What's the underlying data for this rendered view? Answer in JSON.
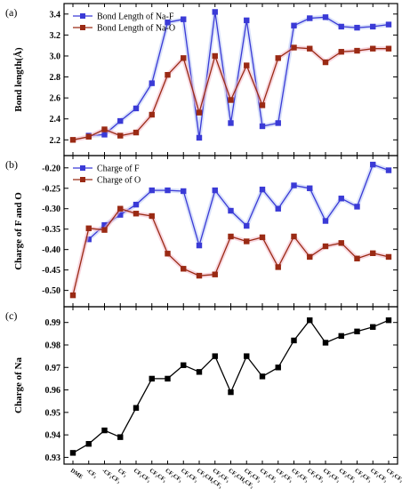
{
  "chart_data": [
    {
      "type": "line",
      "panel_label": "(a)",
      "title": "",
      "xlabel": "",
      "ylabel": "Bond length(Å)",
      "ylim": [
        2.05,
        3.5
      ],
      "yticks": [
        2.2,
        2.4,
        2.6,
        2.8,
        3.0,
        3.2,
        3.4
      ],
      "grid": false,
      "legend": "top-left",
      "series": [
        {
          "name": "Bond Length of Na-F",
          "color": "#3a3ad6",
          "marker": "square",
          "values": [
            null,
            2.24,
            2.25,
            2.38,
            2.5,
            2.74,
            3.32,
            3.35,
            2.22,
            3.42,
            2.36,
            3.34,
            2.33,
            2.36,
            3.29,
            3.36,
            3.37,
            3.28,
            3.27,
            3.28,
            3.3
          ]
        },
        {
          "name": "Bond Length of Na-O",
          "color": "#9a2a14",
          "marker": "square",
          "values": [
            2.2,
            2.23,
            2.3,
            2.24,
            2.27,
            2.44,
            2.82,
            2.98,
            2.46,
            3.0,
            2.58,
            2.91,
            2.53,
            2.98,
            3.08,
            3.07,
            2.94,
            3.04,
            3.05,
            3.07,
            3.07
          ]
        }
      ]
    },
    {
      "type": "line",
      "panel_label": "(b)",
      "title": "",
      "xlabel": "",
      "ylabel": "Charge of F and O",
      "ylim": [
        -0.54,
        -0.17
      ],
      "yticks": [
        -0.5,
        -0.45,
        -0.4,
        -0.35,
        -0.3,
        -0.25,
        -0.2
      ],
      "ytick_labels": [
        "-0.50",
        "-0.45",
        "-0.40",
        "-0.35",
        "-0.30",
        "-0.25",
        "-0.20"
      ],
      "grid": false,
      "legend": "top-left",
      "series": [
        {
          "name": "Charge of F",
          "color": "#3a3ad6",
          "marker": "square",
          "values": [
            null,
            -0.375,
            -0.34,
            -0.315,
            -0.29,
            -0.255,
            -0.255,
            -0.257,
            -0.39,
            -0.255,
            -0.305,
            -0.342,
            -0.253,
            -0.3,
            -0.243,
            -0.25,
            -0.33,
            -0.275,
            -0.295,
            -0.192,
            -0.206
          ]
        },
        {
          "name": "Charge of O",
          "color": "#9a2a14",
          "marker": "square",
          "values": [
            -0.512,
            -0.348,
            -0.352,
            -0.3,
            -0.312,
            -0.318,
            -0.41,
            -0.447,
            -0.464,
            -0.461,
            -0.368,
            -0.38,
            -0.37,
            -0.443,
            -0.368,
            -0.418,
            -0.392,
            -0.384,
            -0.422,
            -0.409,
            -0.418
          ]
        }
      ]
    },
    {
      "type": "line",
      "panel_label": "(c)",
      "title": "",
      "xlabel": "",
      "ylabel": "Charge of Na",
      "ylim": [
        0.927,
        0.997
      ],
      "yticks": [
        0.93,
        0.94,
        0.95,
        0.96,
        0.97,
        0.98,
        0.99
      ],
      "ytick_labels": [
        "0.93",
        "0.94",
        "0.95",
        "0.96",
        "0.97",
        "0.98",
        "0.99"
      ],
      "grid": false,
      "series": [
        {
          "name": "",
          "color": "#000000",
          "marker": "square",
          "values": [
            0.932,
            0.936,
            0.942,
            0.939,
            0.952,
            0.965,
            0.965,
            0.971,
            0.968,
            0.975,
            0.959,
            0.975,
            0.966,
            0.97,
            0.982,
            0.991,
            0.981,
            0.984,
            0.986,
            0.988,
            0.991
          ]
        }
      ]
    }
  ],
  "x_categories": [
    "DME",
    "-CF₃",
    "-CF₂CF₃",
    "CF₂",
    "CF₂CF₃",
    "CF₂CF₃",
    "CF₂CF₃",
    "CF₂CF₃",
    "CF₃CH₂CF₃",
    "CF₂CF₃",
    "CF₂CH₂CF₃",
    "CF₂CF₃",
    "CF₂CF₃",
    "CF₂CF₃",
    "CF₂CF₃",
    "CF₂CF₃",
    "CF₂CF₃",
    "CF₂CF₃",
    "CF₂CF₃",
    "CF₂CF₃",
    "CF₂CF₃"
  ]
}
